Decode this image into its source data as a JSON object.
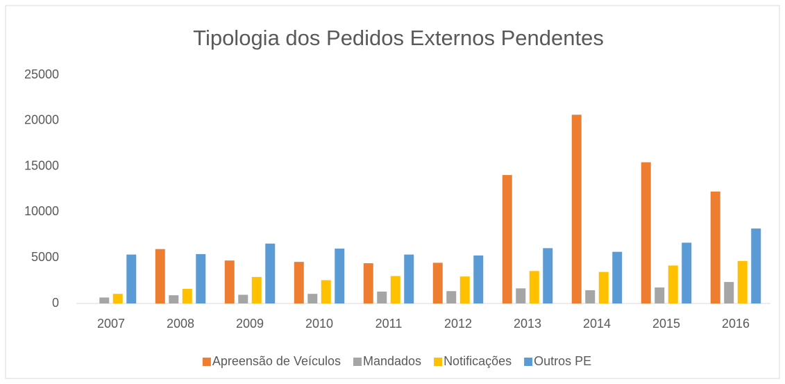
{
  "chart_data": {
    "type": "bar",
    "title": "Tipologia dos Pedidos Externos Pendentes",
    "categories": [
      "2007",
      "2008",
      "2009",
      "2010",
      "2011",
      "2012",
      "2013",
      "2014",
      "2015",
      "2016"
    ],
    "series": [
      {
        "name": "Apreensão de Veículos",
        "color": "#ed7d31",
        "values": [
          0,
          5950,
          4700,
          4550,
          4400,
          4450,
          14050,
          20650,
          15450,
          12250
        ]
      },
      {
        "name": "Mandados",
        "color": "#a5a5a5",
        "values": [
          650,
          900,
          950,
          1050,
          1300,
          1350,
          1650,
          1450,
          1750,
          2350
        ]
      },
      {
        "name": "Notificações",
        "color": "#ffc000",
        "values": [
          1050,
          1600,
          2900,
          2550,
          3000,
          2950,
          3550,
          3450,
          4150,
          4650
        ]
      },
      {
        "name": "Outros PE",
        "color": "#5b9bd5",
        "values": [
          5350,
          5400,
          6550,
          6000,
          5350,
          5250,
          6050,
          5650,
          6650,
          8200
        ]
      }
    ],
    "ylim": [
      0,
      25000
    ],
    "yticks": [
      0,
      5000,
      10000,
      15000,
      20000,
      25000
    ],
    "grid": false,
    "legend": "bottom"
  }
}
